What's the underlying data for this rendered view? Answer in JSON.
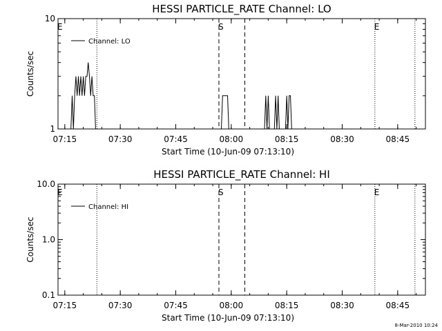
{
  "chart_data": [
    {
      "type": "line",
      "title": "HESSI PARTICLE_RATE Channel: LO",
      "xlabel": "Start Time (10-Jun-09 07:13:10)",
      "ylabel": "Counts/sec",
      "y_scale": "log",
      "ylim": [
        1,
        10
      ],
      "yticks": [
        "1",
        "10"
      ],
      "xticks": [
        "07:15",
        "07:30",
        "07:45",
        "08:00",
        "08:15",
        "08:30",
        "08:45"
      ],
      "legend": {
        "placement": "top-left",
        "label": "Channel: LO"
      },
      "series": [
        {
          "name": "Channel: LO",
          "points": [
            [
              "07:16:40",
              1
            ],
            [
              "07:17:00",
              2
            ],
            [
              "07:17:20",
              1
            ],
            [
              "07:17:40",
              2
            ],
            [
              "07:18:00",
              3
            ],
            [
              "07:18:20",
              2
            ],
            [
              "07:18:40",
              3
            ],
            [
              "07:19:00",
              2
            ],
            [
              "07:19:20",
              3
            ],
            [
              "07:19:40",
              2
            ],
            [
              "07:20:00",
              3
            ],
            [
              "07:20:20",
              2
            ],
            [
              "07:20:40",
              3
            ],
            [
              "07:21:00",
              3
            ],
            [
              "07:21:20",
              4
            ],
            [
              "07:21:40",
              3
            ],
            [
              "07:22:00",
              2
            ],
            [
              "07:22:20",
              3
            ],
            [
              "07:22:40",
              2
            ],
            [
              "07:23:00",
              2
            ],
            [
              "07:23:20",
              1
            ],
            [
              "07:57:20",
              1
            ],
            [
              "07:57:40",
              2
            ],
            [
              "07:58:20",
              2
            ],
            [
              "07:59:00",
              2
            ],
            [
              "07:59:20",
              1
            ],
            [
              "08:09:00",
              1
            ],
            [
              "08:09:20",
              2
            ],
            [
              "08:09:40",
              1
            ],
            [
              "08:10:00",
              2
            ],
            [
              "08:10:20",
              1
            ],
            [
              "08:11:40",
              1
            ],
            [
              "08:12:00",
              2
            ],
            [
              "08:12:20",
              1
            ],
            [
              "08:12:40",
              2
            ],
            [
              "08:13:00",
              1
            ],
            [
              "08:14:40",
              1
            ],
            [
              "08:15:00",
              2
            ],
            [
              "08:15:20",
              1
            ],
            [
              "08:15:40",
              2
            ],
            [
              "08:16:00",
              2
            ],
            [
              "08:16:20",
              1
            ]
          ]
        }
      ],
      "markers": [
        {
          "time": "07:13:10",
          "label": "E",
          "style": "none"
        },
        {
          "time": "07:23:40",
          "label": "",
          "style": "dotted"
        },
        {
          "time": "07:56:40",
          "label": "S",
          "style": "dashed"
        },
        {
          "time": "08:03:40",
          "label": "",
          "style": "dashed"
        },
        {
          "time": "08:38:50",
          "label": "E",
          "style": "dotted"
        },
        {
          "time": "08:49:40",
          "label": "",
          "style": "dotted"
        }
      ],
      "grid": false
    },
    {
      "type": "line",
      "title": "HESSI PARTICLE_RATE Channel: HI",
      "xlabel": "Start Time (10-Jun-09 07:13:10)",
      "ylabel": "Counts/sec",
      "y_scale": "log",
      "ylim": [
        0.1,
        10
      ],
      "yticks": [
        "0.1",
        "1.0",
        "10.0"
      ],
      "xticks": [
        "07:15",
        "07:30",
        "07:45",
        "08:00",
        "08:15",
        "08:30",
        "08:45"
      ],
      "legend": {
        "placement": "top-left",
        "label": "Channel: HI"
      },
      "series": [
        {
          "name": "Channel: HI",
          "points": []
        }
      ],
      "markers": [
        {
          "time": "07:13:10",
          "label": "E",
          "style": "none"
        },
        {
          "time": "07:23:40",
          "label": "",
          "style": "dotted"
        },
        {
          "time": "07:56:40",
          "label": "S",
          "style": "dashed"
        },
        {
          "time": "08:03:40",
          "label": "",
          "style": "dashed"
        },
        {
          "time": "08:38:50",
          "label": "E",
          "style": "dotted"
        },
        {
          "time": "08:49:40",
          "label": "",
          "style": "dotted"
        }
      ],
      "grid": false
    }
  ],
  "footer": {
    "timestamp": "8-Mar-2010 10:24"
  }
}
